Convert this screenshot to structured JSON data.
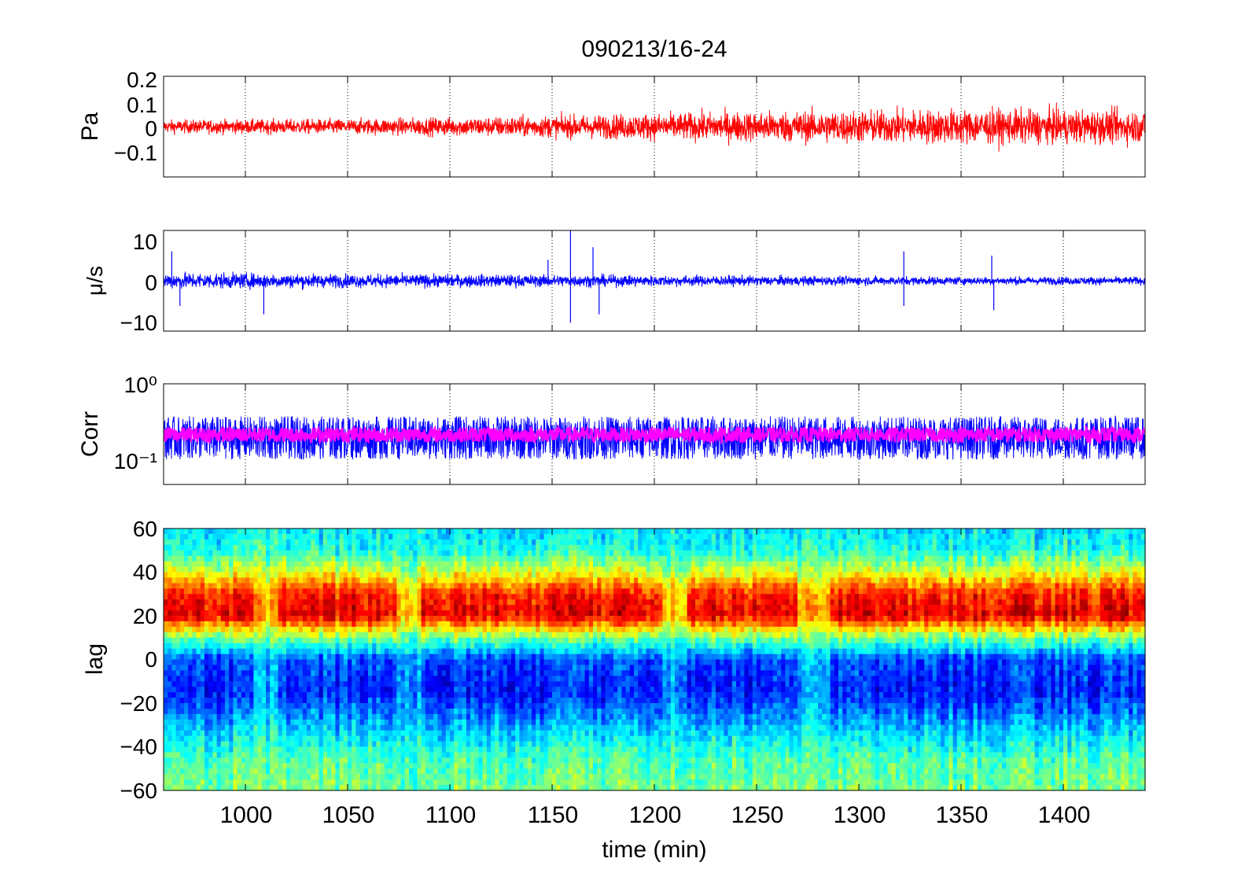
{
  "figure": {
    "title": "090213/16-24",
    "xlabel": "time (min)",
    "x_ticks": [
      "1000",
      "1050",
      "1100",
      "1150",
      "1200",
      "1250",
      "1300",
      "1350",
      "1400"
    ]
  },
  "colors": {
    "pressure": "#ff0000",
    "velocity": "#0000ff",
    "corr_raw": "#0000ff",
    "corr_smooth": "#ff00ff"
  },
  "chart_data": [
    {
      "type": "line",
      "ylabel": "Pa",
      "xlim": [
        960,
        1440
      ],
      "ylim": [
        -0.2,
        0.2
      ],
      "y_ticks": [
        "0.2",
        "0.1",
        "0",
        "−0.1"
      ],
      "series": [
        {
          "color": "#ff0000",
          "description_values": "noise around 0; amplitude grows with time",
          "amplitude_envelope": {
            "x": [
              960,
              1050,
              1150,
              1250,
              1350,
              1440
            ],
            "y": [
              0.03,
              0.035,
              0.05,
              0.07,
              0.08,
              0.075
            ]
          }
        }
      ]
    },
    {
      "type": "line",
      "ylabel": "μ/s",
      "xlim": [
        960,
        1440
      ],
      "ylim": [
        -12,
        12
      ],
      "y_ticks": [
        "10",
        "0",
        "−10"
      ],
      "series": [
        {
          "color": "#0000ff",
          "amplitude_envelope": {
            "x": [
              960,
              1050,
              1150,
              1250,
              1350,
              1440
            ],
            "y": [
              2.5,
              2.0,
              1.8,
              1.5,
              1.2,
              1.2
            ]
          },
          "spikes": [
            {
              "x": 964,
              "y": 7
            },
            {
              "x": 968,
              "y": -6
            },
            {
              "x": 1009,
              "y": -8
            },
            {
              "x": 1148,
              "y": 5
            },
            {
              "x": 1159,
              "y": 12
            },
            {
              "x": 1159,
              "y": -10
            },
            {
              "x": 1170,
              "y": 8
            },
            {
              "x": 1173,
              "y": -8
            },
            {
              "x": 1322,
              "y": 7
            },
            {
              "x": 1322,
              "y": -6
            },
            {
              "x": 1365,
              "y": 6
            },
            {
              "x": 1366,
              "y": -7
            }
          ]
        }
      ]
    },
    {
      "type": "line",
      "ylabel": "Corr",
      "yscale": "log",
      "xlim": [
        960,
        1440
      ],
      "ylim": [
        0.05,
        1
      ],
      "y_ticks": [
        "10⁰",
        "10⁻¹"
      ],
      "series": [
        {
          "color": "#0000ff",
          "center": 0.2,
          "range": [
            0.06,
            0.45
          ]
        },
        {
          "color": "#ff00ff",
          "center": 0.22,
          "range": [
            0.13,
            0.3
          ]
        }
      ]
    },
    {
      "type": "heatmap",
      "ylabel": "lag",
      "xlim": [
        960,
        1440
      ],
      "ylim": [
        -60,
        60
      ],
      "y_ticks": [
        "60",
        "40",
        "20",
        "0",
        "−20",
        "−40",
        "−60"
      ],
      "colormap": "jet",
      "lag_profile": {
        "lag": [
          -60,
          -45,
          -30,
          -15,
          0,
          10,
          20,
          30,
          40,
          50,
          60
        ],
        "value": [
          0.5,
          0.45,
          0.3,
          0.15,
          0.2,
          0.5,
          0.9,
          0.85,
          0.6,
          0.4,
          0.35
        ]
      },
      "weak_bands_x": [
        [
          1005,
          1015
        ],
        [
          1075,
          1085
        ],
        [
          1205,
          1215
        ],
        [
          1270,
          1285
        ]
      ]
    }
  ]
}
